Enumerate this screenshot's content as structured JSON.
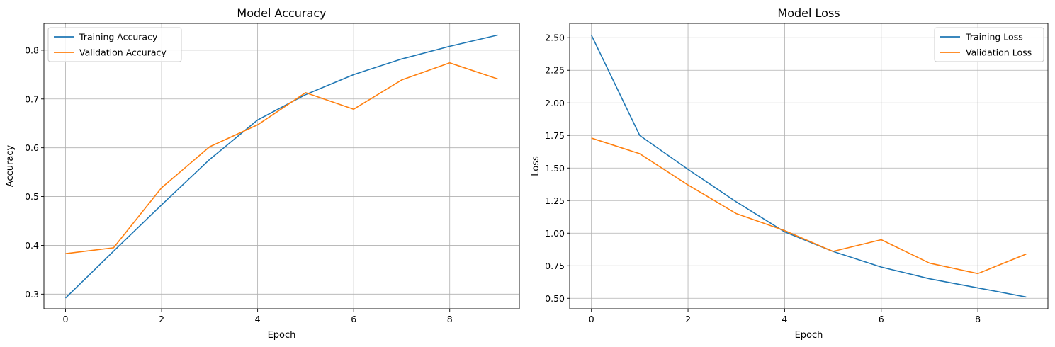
{
  "chart_data": [
    {
      "type": "line",
      "title": "Model Accuracy",
      "xlabel": "Epoch",
      "ylabel": "Accuracy",
      "x": [
        0,
        1,
        2,
        3,
        4,
        5,
        6,
        7,
        8,
        9
      ],
      "xlim": [
        -0.45,
        9.45
      ],
      "ylim": [
        0.27,
        0.855
      ],
      "xticks": [
        0,
        2,
        4,
        6,
        8
      ],
      "yticks": [
        0.3,
        0.4,
        0.5,
        0.6,
        0.7,
        0.8
      ],
      "ytick_labels": [
        "0.3",
        "0.4",
        "0.5",
        "0.6",
        "0.7",
        "0.8"
      ],
      "grid": true,
      "legend_position": "upper left",
      "series": [
        {
          "name": "Training Accuracy",
          "color": "#1f77b4",
          "values": [
            0.292,
            0.388,
            0.483,
            0.576,
            0.657,
            0.709,
            0.75,
            0.782,
            0.808,
            0.831
          ]
        },
        {
          "name": "Validation Accuracy",
          "color": "#ff7f0e",
          "values": [
            0.383,
            0.395,
            0.518,
            0.602,
            0.647,
            0.713,
            0.679,
            0.739,
            0.774,
            0.741
          ]
        }
      ]
    },
    {
      "type": "line",
      "title": "Model Loss",
      "xlabel": "Epoch",
      "ylabel": "Loss",
      "x": [
        0,
        1,
        2,
        3,
        4,
        5,
        6,
        7,
        8,
        9
      ],
      "xlim": [
        -0.45,
        9.45
      ],
      "ylim": [
        0.42,
        2.61
      ],
      "xticks": [
        0,
        2,
        4,
        6,
        8
      ],
      "yticks": [
        0.5,
        0.75,
        1.0,
        1.25,
        1.5,
        1.75,
        2.0,
        2.25,
        2.5
      ],
      "ytick_labels": [
        "0.50",
        "0.75",
        "1.00",
        "1.25",
        "1.50",
        "1.75",
        "2.00",
        "2.25",
        "2.50"
      ],
      "grid": true,
      "legend_position": "upper right",
      "series": [
        {
          "name": "Training Loss",
          "color": "#1f77b4",
          "values": [
            2.52,
            1.75,
            1.49,
            1.24,
            1.01,
            0.86,
            0.74,
            0.65,
            0.58,
            0.51
          ]
        },
        {
          "name": "Validation Loss",
          "color": "#ff7f0e",
          "values": [
            1.73,
            1.61,
            1.37,
            1.15,
            1.02,
            0.86,
            0.95,
            0.77,
            0.69,
            0.84
          ]
        }
      ]
    }
  ]
}
